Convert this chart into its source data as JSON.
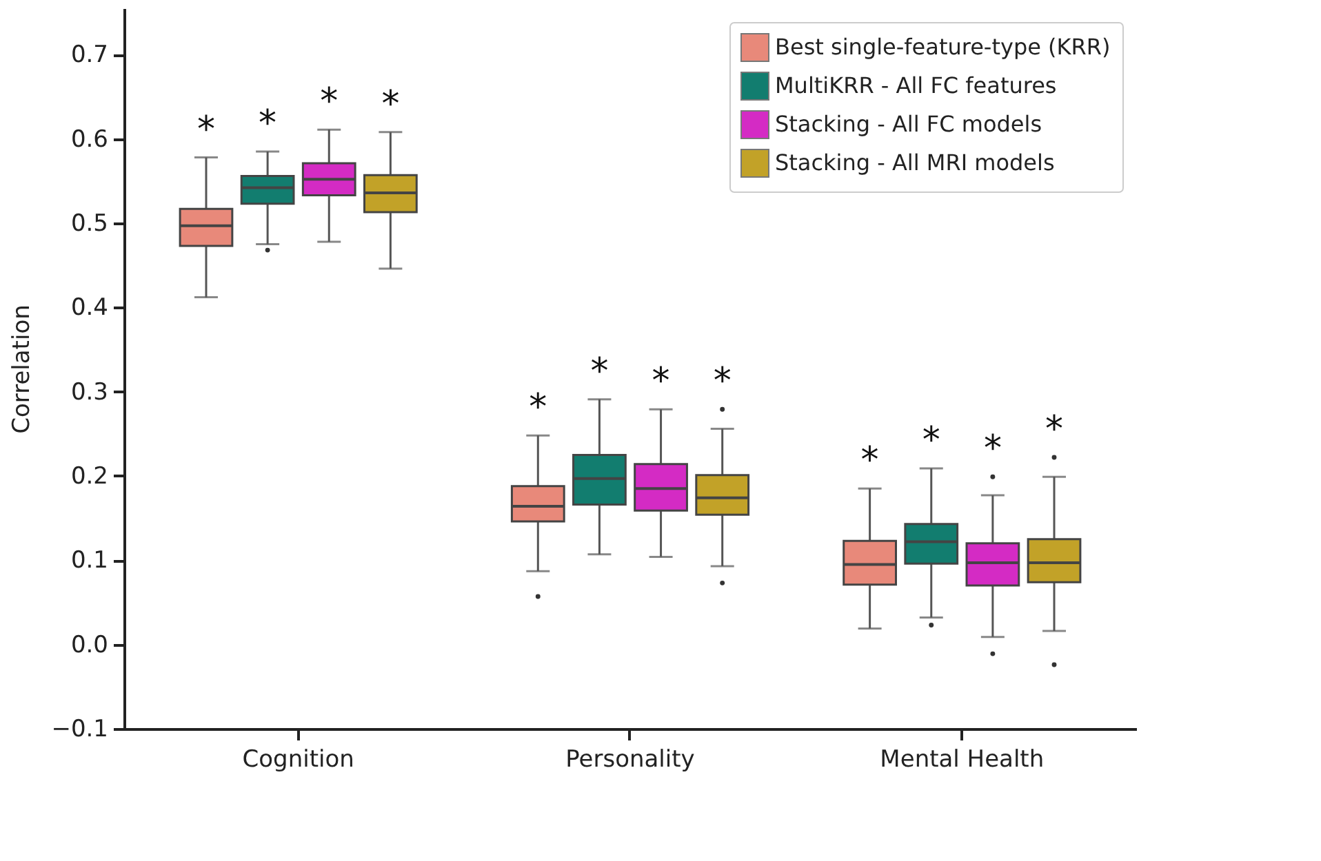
{
  "chart_data": {
    "type": "box",
    "ylabel": "Correlation",
    "categories": [
      "Cognition",
      "Personality",
      "Mental Health"
    ],
    "ylim": [
      -0.1,
      0.755
    ],
    "yticks": [
      {
        "value": -0.1,
        "label": "−0.1"
      },
      {
        "value": 0,
        "label": "0.0"
      },
      0.1,
      0.2,
      0.3,
      0.4,
      0.5,
      0.6,
      0.7
    ],
    "grid": false,
    "legend": "top right",
    "series": [
      {
        "name": "Best single-feature-type (KRR)",
        "color": "#e8897a",
        "boxes": [
          {
            "low": 0.412,
            "q1": 0.473,
            "median": 0.497,
            "q3": 0.517,
            "high": 0.578
          },
          {
            "low": 0.087,
            "q1": 0.146,
            "median": 0.164,
            "q3": 0.188,
            "high": 0.248,
            "outliers": [
              0.057
            ]
          },
          {
            "low": 0.019,
            "q1": 0.071,
            "median": 0.095,
            "q3": 0.123,
            "high": 0.185
          }
        ]
      },
      {
        "name": "MultiKRR - All FC features",
        "color": "#127d6f",
        "boxes": [
          {
            "low": 0.475,
            "q1": 0.523,
            "median": 0.542,
            "q3": 0.556,
            "high": 0.585,
            "outliers": [
              0.468
            ]
          },
          {
            "low": 0.107,
            "q1": 0.166,
            "median": 0.197,
            "q3": 0.225,
            "high": 0.291
          },
          {
            "low": 0.032,
            "q1": 0.096,
            "median": 0.122,
            "q3": 0.143,
            "high": 0.209,
            "outliers": [
              0.023
            ]
          }
        ]
      },
      {
        "name": "Stacking - All FC models",
        "color": "#d42bc4",
        "boxes": [
          {
            "low": 0.478,
            "q1": 0.533,
            "median": 0.552,
            "q3": 0.571,
            "high": 0.611
          },
          {
            "low": 0.104,
            "q1": 0.159,
            "median": 0.185,
            "q3": 0.214,
            "high": 0.279
          },
          {
            "low": 0.009,
            "q1": 0.07,
            "median": 0.097,
            "q3": 0.12,
            "high": 0.177,
            "outliers": [
              0.199,
              -0.011
            ]
          }
        ]
      },
      {
        "name": "Stacking - All MRI models",
        "color": "#c2a228",
        "boxes": [
          {
            "low": 0.446,
            "q1": 0.513,
            "median": 0.536,
            "q3": 0.557,
            "high": 0.608
          },
          {
            "low": 0.093,
            "q1": 0.154,
            "median": 0.174,
            "q3": 0.201,
            "high": 0.256,
            "outliers": [
              0.279,
              0.073
            ]
          },
          {
            "low": 0.016,
            "q1": 0.074,
            "median": 0.097,
            "q3": 0.125,
            "high": 0.199,
            "outliers": [
              0.222,
              -0.024
            ]
          }
        ]
      }
    ],
    "annotations": [
      "*",
      "*",
      "*",
      "*",
      "*",
      "*",
      "*",
      "*",
      "*",
      "*",
      "*",
      "*"
    ]
  }
}
